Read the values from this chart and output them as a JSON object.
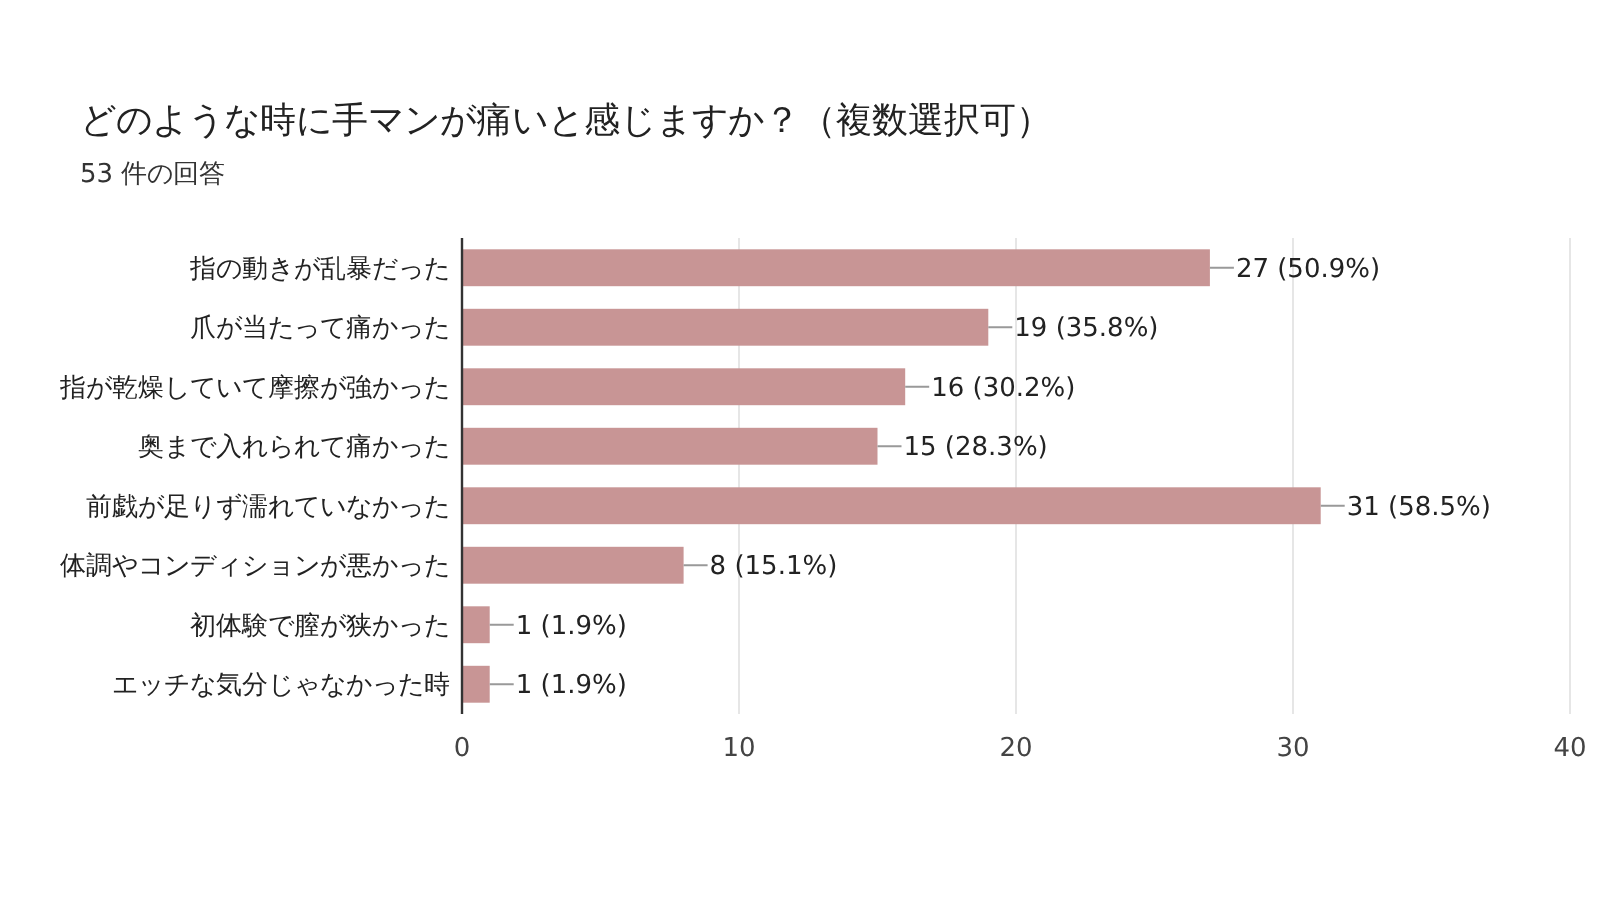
{
  "chart_data": {
    "type": "bar",
    "orientation": "horizontal",
    "title": "どのような時に手マンが痛いと感じますか？（複数選択可）",
    "subtitle": "53 件の回答",
    "categories": [
      "指の動きが乱暴だった",
      "爪が当たって痛かった",
      "指が乾燥していて摩擦が強かった",
      "奥まで入れられて痛かった",
      "前戯が足りず濡れていなかった",
      "体調やコンディションが悪かった",
      "初体験で膣が狭かった",
      "エッチな気分じゃなかった時"
    ],
    "values": [
      27,
      19,
      16,
      15,
      31,
      8,
      1,
      1
    ],
    "value_labels": [
      "27 (50.9%)",
      "19 (35.8%)",
      "16 (30.2%)",
      "15 (28.3%)",
      "31 (58.5%)",
      "8 (15.1%)",
      "1 (1.9%)",
      "1 (1.9%)"
    ],
    "color": "#c89595",
    "xlim": [
      0,
      40
    ],
    "xticks": [
      0,
      10,
      20,
      30,
      40
    ],
    "grid": "x"
  }
}
